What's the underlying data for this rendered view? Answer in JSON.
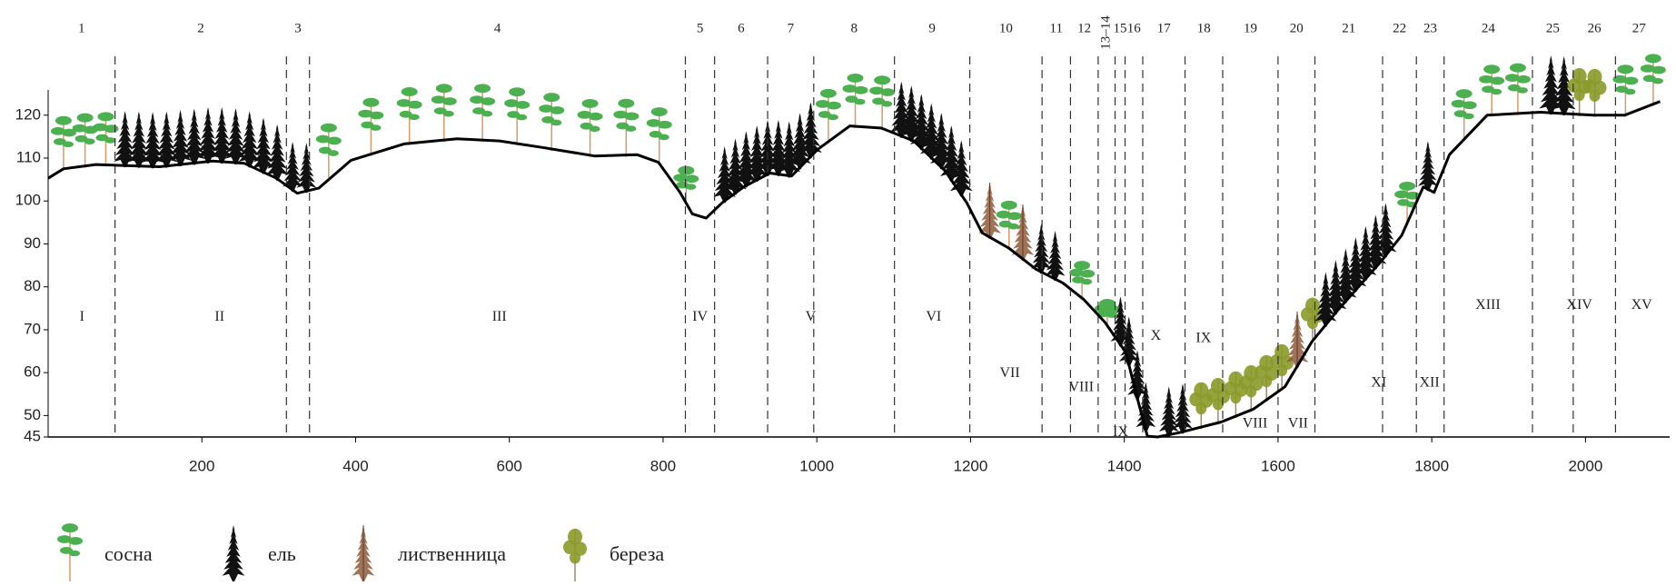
{
  "chart_data": {
    "type": "line",
    "x": [
      0,
      20,
      62,
      145,
      214,
      255,
      297,
      324,
      352,
      394,
      463,
      532,
      587,
      642,
      711,
      766,
      794,
      822,
      838,
      856,
      877,
      905,
      939,
      967,
      1001,
      1043,
      1084,
      1126,
      1167,
      1195,
      1215,
      1250,
      1285,
      1320,
      1347,
      1375,
      1402,
      1416,
      1430,
      1443,
      1471,
      1526,
      1568,
      1609,
      1644,
      1678,
      1734,
      1761,
      1789,
      1803,
      1823,
      1872,
      1941,
      2010,
      2051,
      2097
    ],
    "values": [
      105.3,
      107.5,
      108.5,
      108,
      109.3,
      108.8,
      105.3,
      101.8,
      103,
      109.5,
      113.3,
      114.5,
      114,
      112.5,
      110.5,
      110.8,
      109,
      102,
      97,
      96,
      99.6,
      103.3,
      106.5,
      105.8,
      112,
      117.5,
      117,
      114,
      107,
      99.6,
      92.6,
      89,
      84.1,
      80.9,
      77.1,
      71.7,
      64.7,
      54.7,
      45.2,
      45,
      46,
      48.5,
      51.5,
      56.7,
      67.2,
      74.6,
      85.9,
      92,
      103.3,
      102,
      110.8,
      120,
      120.7,
      120,
      120,
      123.2
    ],
    "color": "#000000",
    "xlim": [
      0,
      2100
    ],
    "ylim": [
      45,
      128
    ],
    "xticks": [
      200,
      400,
      600,
      800,
      1000,
      1200,
      1400,
      1600,
      1800,
      2000
    ],
    "yticks": [
      45,
      50,
      60,
      70,
      80,
      90,
      100,
      110,
      120
    ],
    "zones": [
      {
        "label": "1",
        "from": 0,
        "to": 87
      },
      {
        "label": "2",
        "from": 87,
        "to": 310
      },
      {
        "label": "3",
        "from": 310,
        "to": 340
      },
      {
        "label": "4",
        "from": 340,
        "to": 829
      },
      {
        "label": "5",
        "from": 829,
        "to": 867
      },
      {
        "label": "6",
        "from": 867,
        "to": 936
      },
      {
        "label": "7",
        "from": 936,
        "to": 996
      },
      {
        "label": "8",
        "from": 996,
        "to": 1101
      },
      {
        "label": "9",
        "from": 1101,
        "to": 1199
      },
      {
        "label": "10",
        "from": 1199,
        "to": 1293
      },
      {
        "label": "11",
        "from": 1293,
        "to": 1330
      },
      {
        "label": "12",
        "from": 1330,
        "to": 1366
      },
      {
        "label": "13–14",
        "from": 1366,
        "to": 1388
      },
      {
        "label": "15",
        "from": 1388,
        "to": 1401
      },
      {
        "label": "16",
        "from": 1401,
        "to": 1424
      },
      {
        "label": "17",
        "from": 1424,
        "to": 1479
      },
      {
        "label": "18",
        "from": 1479,
        "to": 1528
      },
      {
        "label": "19",
        "from": 1528,
        "to": 1600
      },
      {
        "label": "20",
        "from": 1600,
        "to": 1648
      },
      {
        "label": "21",
        "from": 1648,
        "to": 1736
      },
      {
        "label": "22",
        "from": 1736,
        "to": 1780
      },
      {
        "label": "23",
        "from": 1780,
        "to": 1816
      },
      {
        "label": "24",
        "from": 1816,
        "to": 1931
      },
      {
        "label": "25",
        "from": 1931,
        "to": 1984
      },
      {
        "label": "26",
        "from": 1984,
        "to": 2039
      },
      {
        "label": "27",
        "from": 2039,
        "to": 2100
      }
    ],
    "annotations": [
      {
        "text": "I",
        "x": 44,
        "y": 72.9
      },
      {
        "text": "II",
        "x": 223,
        "y": 72.9
      },
      {
        "text": "III",
        "x": 587,
        "y": 72.9
      },
      {
        "text": "IV",
        "x": 848,
        "y": 72.9
      },
      {
        "text": "V",
        "x": 992,
        "y": 72.9
      },
      {
        "text": "VI",
        "x": 1152,
        "y": 72.9
      },
      {
        "text": "VII",
        "x": 1251,
        "y": 59.7
      },
      {
        "text": "VIII",
        "x": 1344,
        "y": 56.5
      },
      {
        "text": "IX",
        "x": 1395,
        "y": 46
      },
      {
        "text": "X",
        "x": 1441,
        "y": 68.4
      },
      {
        "text": "IX",
        "x": 1503,
        "y": 67.9
      },
      {
        "text": "VIII",
        "x": 1570,
        "y": 48
      },
      {
        "text": "VII",
        "x": 1626,
        "y": 48
      },
      {
        "text": "XI",
        "x": 1731,
        "y": 57.5
      },
      {
        "text": "XII",
        "x": 1797,
        "y": 57.5
      },
      {
        "text": "XIII",
        "x": 1873,
        "y": 75.6
      },
      {
        "text": "XIV",
        "x": 1992,
        "y": 75.6
      },
      {
        "text": "XV",
        "x": 2073,
        "y": 75.6
      }
    ],
    "legend": [
      {
        "name": "сосна",
        "color": "#4caf50"
      },
      {
        "name": "ель",
        "color": "#111111"
      },
      {
        "name": "лиственница",
        "color": "#8d5a3b"
      },
      {
        "name": "береза",
        "color": "#8a9a2a"
      }
    ]
  }
}
